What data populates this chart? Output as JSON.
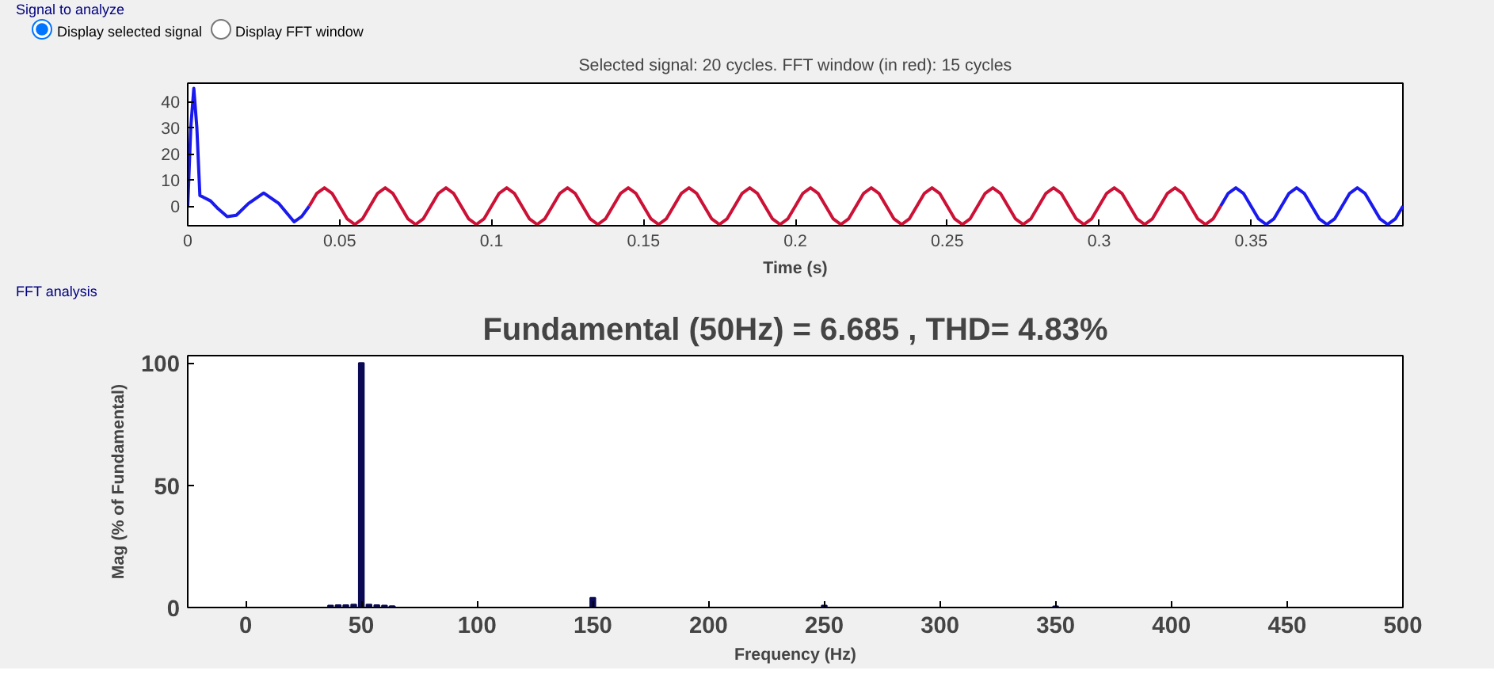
{
  "chart_data": [
    {
      "type": "line",
      "title": "Selected signal: 20 cycles. FFT window (in red): 15 cycles",
      "xlabel": "Time (s)",
      "annotations": [
        "Signal to analyze",
        "Display selected signal",
        "Display FFT window"
      ],
      "xlim": [
        0,
        0.4
      ],
      "ylim": [
        -7.5,
        47
      ],
      "xticks": [
        0,
        0.05,
        0.1,
        0.15,
        0.2,
        0.25,
        0.3,
        0.35
      ],
      "yticks": [
        0,
        10,
        20,
        30,
        40
      ],
      "marker": "none",
      "line_style": "solid",
      "series": [
        {
          "color": "#1a1aee",
          "x": [
            0,
            0.001,
            0.002,
            0.003,
            0.004,
            0.005,
            0.0075,
            0.01,
            0.013,
            0.016,
            0.02,
            0.025,
            0.03,
            0.035,
            0.0375,
            0.04,
            0.19,
            0.34,
            0.3425,
            0.345,
            0.3475,
            0.35,
            0.3525,
            0.355,
            0.3575,
            0.36,
            0.3625,
            0.365,
            0.3675,
            0.37,
            0.3725,
            0.375,
            0.3775,
            0.38,
            0.3825,
            0.385,
            0.3875,
            0.39,
            0.3925,
            0.395,
            0.3975,
            0.4
          ],
          "values": [
            0,
            30,
            45,
            30,
            4,
            3.5,
            2,
            -1,
            -4,
            -3.5,
            1,
            5,
            1,
            -6,
            -4,
            0,
            null,
            0,
            4.9,
            7,
            4.9,
            0,
            -4.9,
            -7,
            -4.9,
            0,
            4.9,
            7,
            4.9,
            0,
            -4.9,
            -7,
            -4.9,
            0,
            4.9,
            7,
            4.9,
            0,
            -4.9,
            -7,
            -4.9,
            0
          ]
        },
        {
          "color": "#cc1136",
          "x": [
            0.04,
            0.0425,
            0.045,
            0.0475,
            0.05,
            0.0525,
            0.055,
            0.0575,
            0.06,
            0.0625,
            0.065,
            0.0675,
            0.07,
            0.0725,
            0.075,
            0.0775,
            0.08,
            0.0825,
            0.085,
            0.0875,
            0.09,
            0.0925,
            0.095,
            0.0975,
            0.1,
            0.1025,
            0.105,
            0.1075,
            0.11,
            0.1125,
            0.115,
            0.1175,
            0.12,
            0.1225,
            0.125,
            0.1275,
            0.13,
            0.1325,
            0.135,
            0.1375,
            0.14,
            0.1425,
            0.145,
            0.1475,
            0.15,
            0.1525,
            0.155,
            0.1575,
            0.16,
            0.1625,
            0.165,
            0.1675,
            0.17,
            0.1725,
            0.175,
            0.1775,
            0.18,
            0.1825,
            0.185,
            0.1875,
            0.19,
            0.1925,
            0.195,
            0.1975,
            0.2,
            0.2025,
            0.205,
            0.2075,
            0.21,
            0.2125,
            0.215,
            0.2175,
            0.22,
            0.2225,
            0.225,
            0.2275,
            0.23,
            0.2325,
            0.235,
            0.2375,
            0.24,
            0.2425,
            0.245,
            0.2475,
            0.25,
            0.2525,
            0.255,
            0.2575,
            0.26,
            0.2625,
            0.265,
            0.2675,
            0.27,
            0.2725,
            0.275,
            0.2775,
            0.28,
            0.2825,
            0.285,
            0.2875,
            0.29,
            0.2925,
            0.295,
            0.2975,
            0.3,
            0.3025,
            0.305,
            0.3075,
            0.31,
            0.3125,
            0.315,
            0.3175,
            0.32,
            0.3225,
            0.325,
            0.3275,
            0.33,
            0.3325,
            0.335,
            0.3375,
            0.34
          ],
          "values": [
            0,
            4.9,
            7,
            4.9,
            0,
            -4.9,
            -7,
            -4.9,
            0,
            4.9,
            7,
            4.9,
            0,
            -4.9,
            -7,
            -4.9,
            0,
            4.9,
            7,
            4.9,
            0,
            -4.9,
            -7,
            -4.9,
            0,
            4.9,
            7,
            4.9,
            0,
            -4.9,
            -7,
            -4.9,
            0,
            4.9,
            7,
            4.9,
            0,
            -4.9,
            -7,
            -4.9,
            0,
            4.9,
            7,
            4.9,
            0,
            -4.9,
            -7,
            -4.9,
            0,
            4.9,
            7,
            4.9,
            0,
            -4.9,
            -7,
            -4.9,
            0,
            4.9,
            7,
            4.9,
            0,
            -4.9,
            -7,
            -4.9,
            0,
            4.9,
            7,
            4.9,
            0,
            -4.9,
            -7,
            -4.9,
            0,
            4.9,
            7,
            4.9,
            0,
            -4.9,
            -7,
            -4.9,
            0,
            4.9,
            7,
            4.9,
            0,
            -4.9,
            -7,
            -4.9,
            0,
            4.9,
            7,
            4.9,
            0,
            -4.9,
            -7,
            -4.9,
            0,
            4.9,
            7,
            4.9,
            0,
            -4.9,
            -7,
            -4.9,
            0,
            4.9,
            7,
            4.9,
            0,
            -4.9,
            -7,
            -4.9,
            0,
            4.9,
            7,
            4.9,
            0,
            -4.9,
            -7,
            -4.9,
            0
          ]
        }
      ]
    },
    {
      "type": "bar",
      "title": "Fundamental (50Hz) = 6.685 , THD= 4.83%",
      "xlabel": "Frequency (Hz)",
      "ylabel": "Mag (% of Fundamental)",
      "annotations": [
        "FFT analysis"
      ],
      "x": [
        36.7,
        40,
        43.3,
        46.7,
        50,
        53.3,
        56.7,
        60,
        63.3,
        150,
        250,
        350
      ],
      "values": [
        0.8,
        1,
        1,
        1.2,
        100,
        1.2,
        1,
        0.8,
        0.6,
        4,
        0.8,
        0.5
      ],
      "color": "#0a0a55",
      "xlim": [
        -25,
        500
      ],
      "ylim": [
        0,
        103
      ],
      "xticks": [
        0,
        50,
        100,
        150,
        200,
        250,
        300,
        350,
        400,
        450,
        500
      ],
      "yticks": [
        0,
        50,
        100
      ]
    }
  ]
}
